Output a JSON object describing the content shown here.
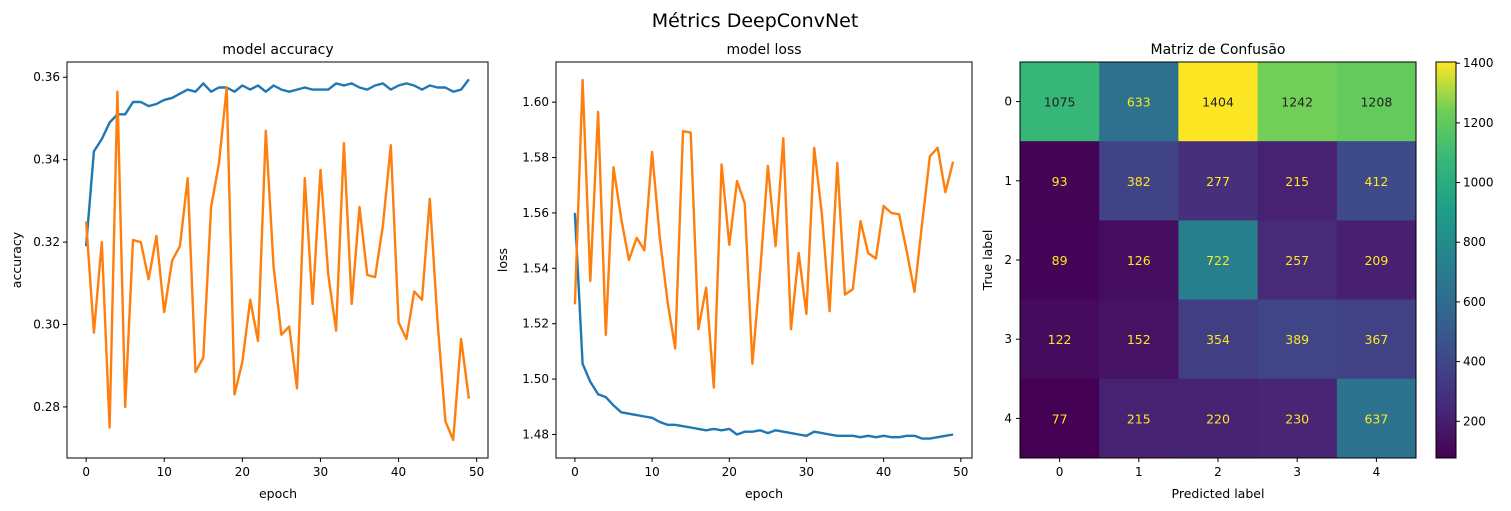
{
  "suptitle": "Métrics DeepConvNet",
  "colors": {
    "train": "#1f77b4",
    "val": "#ff7f0e"
  },
  "chart_data": [
    {
      "type": "line",
      "title": "model accuracy",
      "xlabel": "epoch",
      "ylabel": "accuracy",
      "xlim": [
        -2.45,
        51.45
      ],
      "ylim": [
        0.2676,
        0.3637
      ],
      "xticks": [
        0,
        10,
        20,
        30,
        40,
        50
      ],
      "xtick_labels": [
        "0",
        "10",
        "20",
        "30",
        "40",
        "50"
      ],
      "yticks": [
        0.28,
        0.3,
        0.32,
        0.34,
        0.36
      ],
      "ytick_labels": [
        "0.28",
        "0.30",
        "0.32",
        "0.34",
        "0.36"
      ],
      "x": [
        0,
        1,
        2,
        3,
        4,
        5,
        6,
        7,
        8,
        9,
        10,
        11,
        12,
        13,
        14,
        15,
        16,
        17,
        18,
        19,
        20,
        21,
        22,
        23,
        24,
        25,
        26,
        27,
        28,
        29,
        30,
        31,
        32,
        33,
        34,
        35,
        36,
        37,
        38,
        39,
        40,
        41,
        42,
        43,
        44,
        45,
        46,
        47,
        48,
        49
      ],
      "series": [
        {
          "values": [
            0.319,
            0.342,
            0.345,
            0.349,
            0.351,
            0.351,
            0.354,
            0.354,
            0.353,
            0.3535,
            0.3545,
            0.355,
            0.356,
            0.357,
            0.3565,
            0.3585,
            0.3565,
            0.3575,
            0.3575,
            0.3565,
            0.358,
            0.357,
            0.358,
            0.3565,
            0.358,
            0.357,
            0.3565,
            0.357,
            0.3575,
            0.357,
            0.357,
            0.357,
            0.3585,
            0.358,
            0.3585,
            0.3575,
            0.357,
            0.358,
            0.3585,
            0.357,
            0.358,
            0.3585,
            0.358,
            0.357,
            0.358,
            0.3575,
            0.3575,
            0.3565,
            0.357,
            0.3595
          ]
        },
        {
          "values": [
            0.325,
            0.298,
            0.32,
            0.275,
            0.3565,
            0.28,
            0.3205,
            0.32,
            0.311,
            0.3215,
            0.303,
            0.3155,
            0.319,
            0.3355,
            0.2885,
            0.292,
            0.3285,
            0.339,
            0.3575,
            0.283,
            0.291,
            0.306,
            0.296,
            0.347,
            0.314,
            0.2975,
            0.2995,
            0.2845,
            0.3355,
            0.305,
            0.3375,
            0.312,
            0.2985,
            0.344,
            0.305,
            0.3285,
            0.312,
            0.3115,
            0.324,
            0.3435,
            0.3005,
            0.2965,
            0.308,
            0.306,
            0.3305,
            0.3005,
            0.2765,
            0.272,
            0.2965,
            0.282
          ]
        }
      ]
    },
    {
      "type": "line",
      "title": "model loss",
      "xlabel": "epoch",
      "ylabel": "loss",
      "xlim": [
        -2.45,
        51.45
      ],
      "ylim": [
        1.4715,
        1.6145
      ],
      "xticks": [
        0,
        10,
        20,
        30,
        40,
        50
      ],
      "xtick_labels": [
        "0",
        "10",
        "20",
        "30",
        "40",
        "50"
      ],
      "yticks": [
        1.48,
        1.5,
        1.52,
        1.54,
        1.56,
        1.58,
        1.6
      ],
      "ytick_labels": [
        "1.48",
        "1.50",
        "1.52",
        "1.54",
        "1.56",
        "1.58",
        "1.60"
      ],
      "x": [
        0,
        1,
        2,
        3,
        4,
        5,
        6,
        7,
        8,
        9,
        10,
        11,
        12,
        13,
        14,
        15,
        16,
        17,
        18,
        19,
        20,
        21,
        22,
        23,
        24,
        25,
        26,
        27,
        28,
        29,
        30,
        31,
        32,
        33,
        34,
        35,
        36,
        37,
        38,
        39,
        40,
        41,
        42,
        43,
        44,
        45,
        46,
        47,
        48,
        49
      ],
      "series": [
        {
          "values": [
            1.56,
            1.5055,
            1.499,
            1.4945,
            1.4935,
            1.4905,
            1.488,
            1.4875,
            1.487,
            1.4865,
            1.486,
            1.4845,
            1.4835,
            1.4835,
            1.483,
            1.4825,
            1.482,
            1.4815,
            1.482,
            1.4815,
            1.482,
            1.48,
            1.481,
            1.481,
            1.4815,
            1.4805,
            1.4815,
            1.481,
            1.4805,
            1.48,
            1.4795,
            1.481,
            1.4805,
            1.48,
            1.4795,
            1.4795,
            1.4795,
            1.479,
            1.4795,
            1.479,
            1.4795,
            1.479,
            1.479,
            1.4795,
            1.4795,
            1.4785,
            1.4785,
            1.479,
            1.4795,
            1.48
          ]
        },
        {
          "values": [
            1.527,
            1.608,
            1.5355,
            1.5965,
            1.516,
            1.5765,
            1.558,
            1.543,
            1.551,
            1.5465,
            1.582,
            1.551,
            1.528,
            1.511,
            1.5895,
            1.589,
            1.518,
            1.533,
            1.497,
            1.5775,
            1.5485,
            1.5715,
            1.5635,
            1.5055,
            1.5385,
            1.577,
            1.548,
            1.587,
            1.518,
            1.5455,
            1.5235,
            1.5835,
            1.5595,
            1.5245,
            1.578,
            1.5305,
            1.5325,
            1.557,
            1.5455,
            1.5435,
            1.5625,
            1.56,
            1.5595,
            1.546,
            1.5315,
            1.5565,
            1.5805,
            1.5835,
            1.5675,
            1.5785
          ]
        }
      ]
    },
    {
      "type": "heatmap",
      "title": "Matriz de Confusão",
      "xlabel": "Predicted label",
      "ylabel": "True label",
      "x_categories": [
        "0",
        "1",
        "2",
        "3",
        "4"
      ],
      "y_categories": [
        "0",
        "1",
        "2",
        "3",
        "4"
      ],
      "values": [
        [
          1075,
          633,
          1404,
          1242,
          1208
        ],
        [
          93,
          382,
          277,
          215,
          412
        ],
        [
          89,
          126,
          722,
          257,
          209
        ],
        [
          122,
          152,
          354,
          389,
          367
        ],
        [
          77,
          215,
          220,
          230,
          637
        ]
      ],
      "colormap": "viridis",
      "vmin": 77,
      "vmax": 1404,
      "colorbar_ticks": [
        200,
        400,
        600,
        800,
        1000,
        1200,
        1400
      ],
      "colorbar_tick_labels": [
        "200",
        "400",
        "600",
        "800",
        "1000",
        "1200",
        "1400"
      ]
    }
  ]
}
